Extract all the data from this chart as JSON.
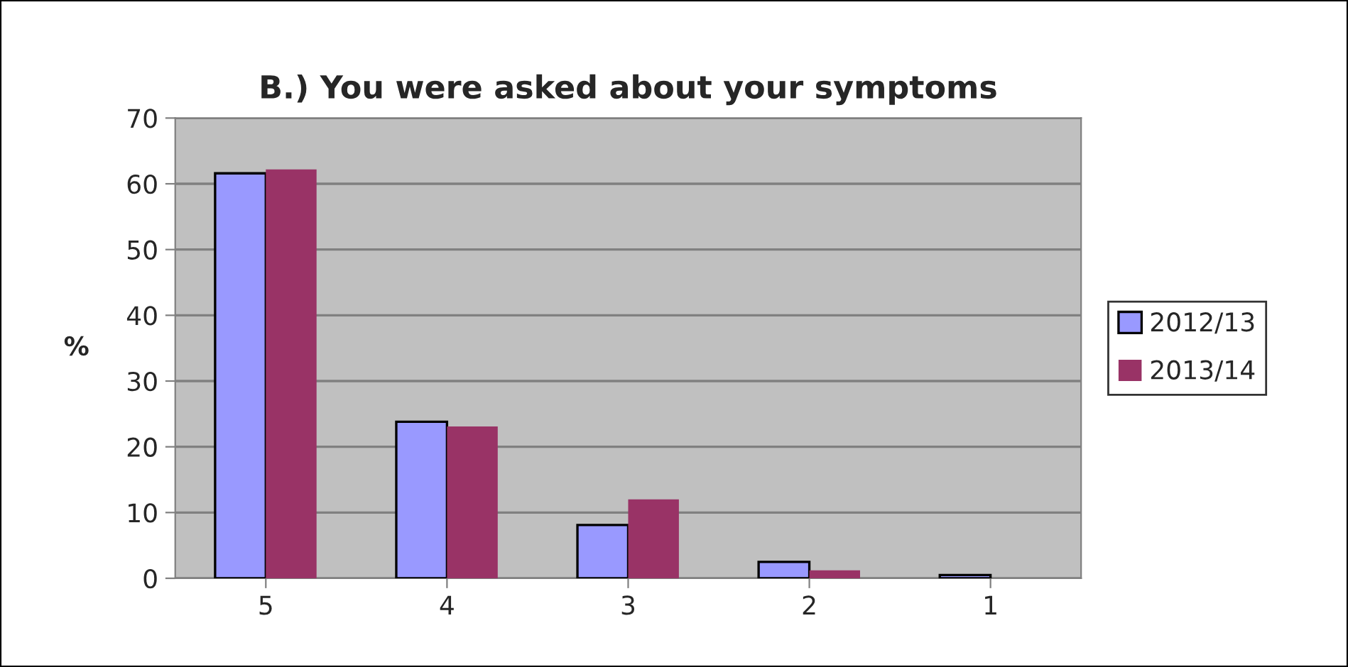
{
  "chart_data": {
    "type": "bar",
    "title": "B.) You were asked about your symptoms",
    "ylabel": "%",
    "categories": [
      "5",
      "4",
      "3",
      "2",
      "1"
    ],
    "series": [
      {
        "name": "2012/13",
        "color": "#9999ff",
        "values": [
          61.6,
          23.8,
          8.1,
          2.5,
          0.5
        ]
      },
      {
        "name": "2013/14",
        "color": "#993366",
        "values": [
          62.2,
          23.1,
          12.0,
          1.2,
          0
        ]
      }
    ],
    "ylim": [
      0,
      70
    ],
    "yticks": [
      0,
      10,
      20,
      30,
      40,
      50,
      60,
      70
    ],
    "grid": "y",
    "legend": "right"
  }
}
